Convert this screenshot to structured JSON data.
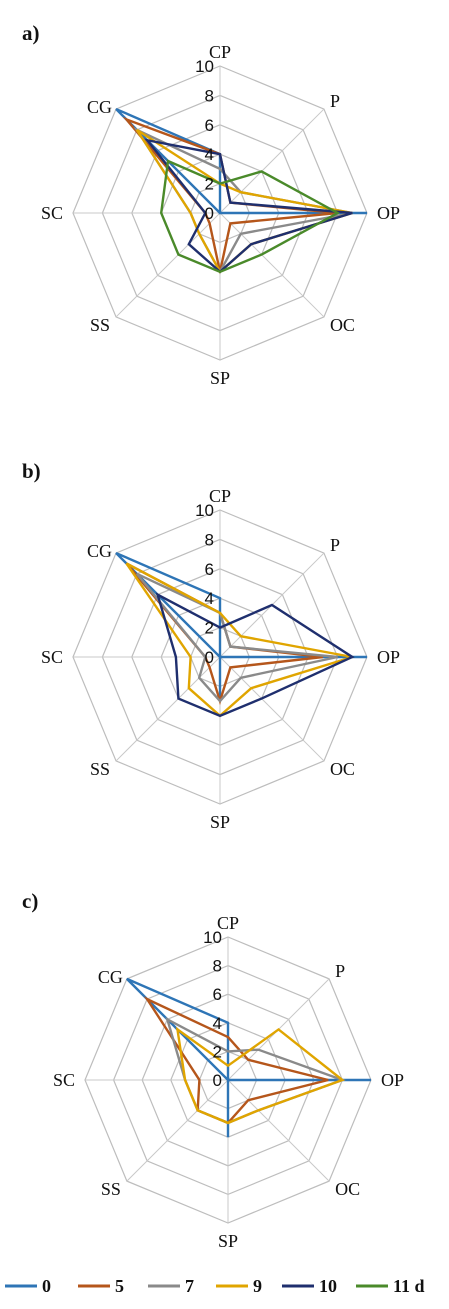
{
  "chart_data": [
    {
      "type": "radar",
      "panel": "a)",
      "axes": [
        "CP",
        "P",
        "OP",
        "OC",
        "SP",
        "SS",
        "SC",
        "CG"
      ],
      "rlim": [
        0,
        10
      ],
      "ticks": [
        "0",
        "2",
        "4",
        "6",
        "8",
        "10"
      ],
      "series": [
        {
          "name": "0",
          "values": [
            4,
            0,
            10,
            0,
            0,
            0,
            0,
            10
          ]
        },
        {
          "name": "5",
          "values": [
            4,
            1,
            8,
            1,
            4,
            1,
            1,
            9
          ]
        },
        {
          "name": "7",
          "values": [
            3,
            2,
            9,
            2,
            4,
            2,
            2,
            8
          ]
        },
        {
          "name": "9",
          "values": [
            2,
            2,
            9,
            3,
            4,
            2,
            2,
            8
          ]
        },
        {
          "name": "10",
          "values": [
            4,
            1,
            9,
            3,
            4,
            3,
            1,
            7
          ]
        },
        {
          "name": "11 d",
          "values": [
            2,
            4,
            8,
            4,
            4,
            4,
            4,
            5
          ]
        }
      ]
    },
    {
      "type": "radar",
      "panel": "b)",
      "axes": [
        "CP",
        "P",
        "OP",
        "OC",
        "SP",
        "SS",
        "SC",
        "CG"
      ],
      "rlim": [
        0,
        10
      ],
      "ticks": [
        "0",
        "2",
        "4",
        "6",
        "8",
        "10"
      ],
      "series": [
        {
          "name": "0",
          "values": [
            4,
            0,
            10,
            0,
            3,
            0,
            0,
            10
          ]
        },
        {
          "name": "5",
          "values": [
            3,
            1,
            7,
            1,
            3,
            1,
            1,
            9
          ]
        },
        {
          "name": "7",
          "values": [
            3,
            1,
            8,
            2,
            3,
            2,
            1,
            8
          ]
        },
        {
          "name": "9",
          "values": [
            3,
            2,
            9,
            3,
            4,
            3,
            2,
            9
          ]
        },
        {
          "name": "10",
          "values": [
            2,
            5,
            9,
            4,
            4,
            4,
            3,
            6
          ]
        }
      ]
    },
    {
      "type": "radar",
      "panel": "c)",
      "axes": [
        "CP",
        "P",
        "OP",
        "OC",
        "SP",
        "SS",
        "SC",
        "CG"
      ],
      "rlim": [
        0,
        10
      ],
      "ticks": [
        "0",
        "2",
        "4",
        "6",
        "8",
        "10"
      ],
      "series": [
        {
          "name": "0",
          "values": [
            4,
            0,
            10,
            0,
            4,
            0,
            0,
            10
          ]
        },
        {
          "name": "5",
          "values": [
            3,
            2,
            7,
            2,
            3,
            3,
            2,
            8
          ]
        },
        {
          "name": "7",
          "values": [
            2,
            3,
            8,
            3,
            3,
            3,
            3,
            6
          ]
        },
        {
          "name": "9",
          "values": [
            1,
            5,
            8,
            3,
            3,
            3,
            3,
            5
          ]
        }
      ]
    }
  ],
  "legend": {
    "items": [
      {
        "label": "0",
        "color": "#2e75b6"
      },
      {
        "label": "5",
        "color": "#b5561b"
      },
      {
        "label": "7",
        "color": "#8a8a8a"
      },
      {
        "label": "9",
        "color": "#e0a500"
      },
      {
        "label": "10",
        "color": "#1f2f6e"
      },
      {
        "label": "11 d",
        "color": "#4a8a2a"
      }
    ]
  }
}
